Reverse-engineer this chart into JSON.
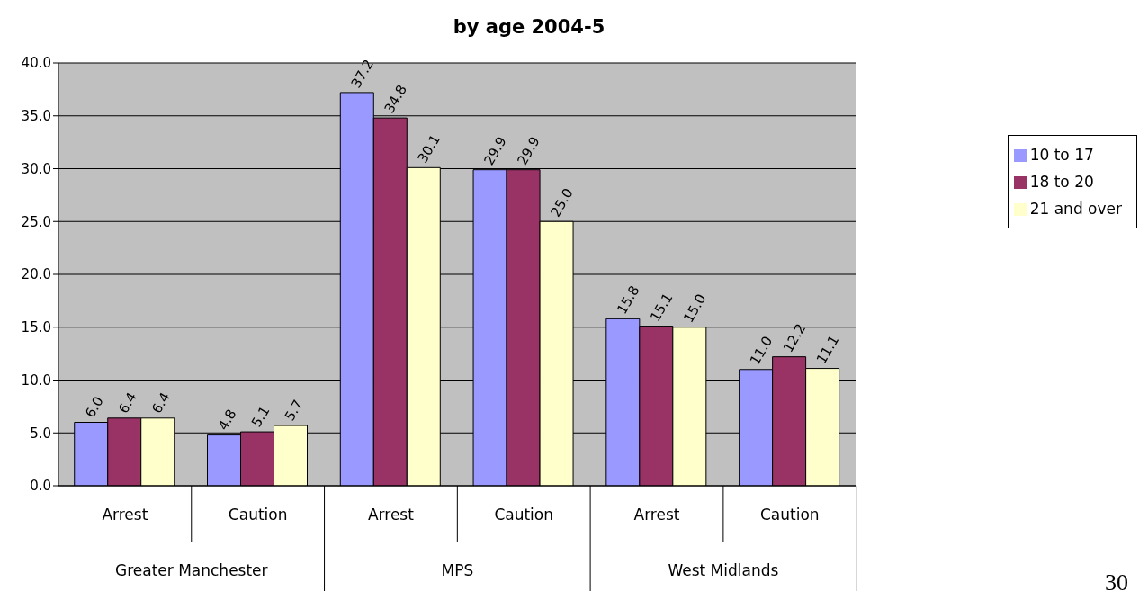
{
  "chart_data": {
    "type": "bar",
    "title": "by age 2004-5",
    "categories": [
      "Arrest",
      "Caution",
      "Arrest",
      "Caution",
      "Arrest",
      "Caution"
    ],
    "series": [
      {
        "name": "10 to 17",
        "color": "#9999ff",
        "values": [
          6.0,
          4.8,
          37.2,
          29.9,
          15.8,
          11.0
        ],
        "value_labels": [
          "6.0",
          "4.8",
          "37.2",
          "29.9",
          "15.8",
          "11.0"
        ]
      },
      {
        "name": "18 to 20",
        "color": "#993366",
        "values": [
          6.4,
          5.1,
          34.8,
          29.9,
          15.1,
          12.2
        ],
        "value_labels": [
          "6.4",
          "5.1",
          "34.8",
          "29.9",
          "15.1",
          "12.2"
        ]
      },
      {
        "name": "21 and over",
        "color": "#ffffcc",
        "values": [
          6.4,
          5.7,
          30.1,
          25.0,
          15.0,
          11.1
        ],
        "value_labels": [
          "6.4",
          "5.7",
          "30.1",
          "25.0",
          "15.0",
          "11.1"
        ]
      }
    ],
    "ylim": [
      0,
      40
    ],
    "yticks": [
      {
        "value": 0,
        "label": "0.0"
      },
      {
        "value": 5,
        "label": "5.0"
      },
      {
        "value": 10,
        "label": "10.0"
      },
      {
        "value": 15,
        "label": "15.0"
      },
      {
        "value": 20,
        "label": "20.0"
      },
      {
        "value": 25,
        "label": "25.0"
      },
      {
        "value": 30,
        "label": "30.0"
      },
      {
        "value": 35,
        "label": "35.0"
      },
      {
        "value": 40,
        "label": "40.0"
      }
    ],
    "grid": "y",
    "legend": "right",
    "annotations": [
      "Greater Manchester",
      "MPS",
      "West Midlands",
      "30"
    ]
  }
}
